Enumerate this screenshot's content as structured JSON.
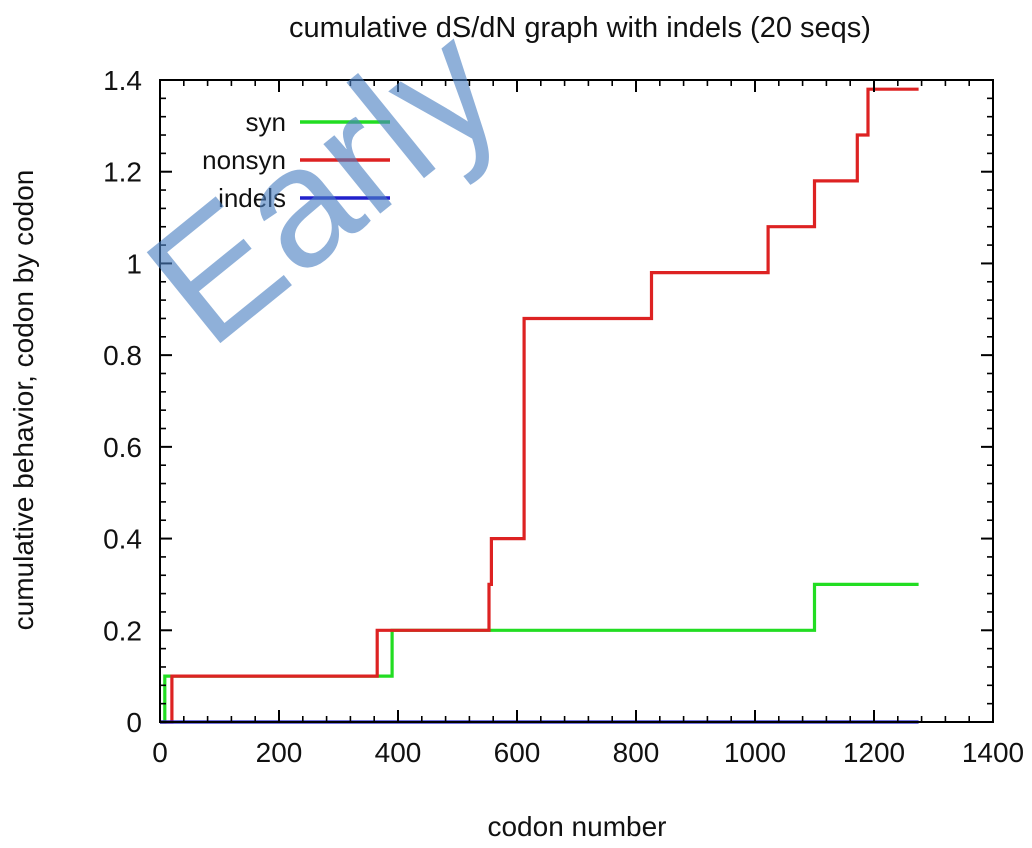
{
  "watermark": "Early",
  "chart_data": {
    "type": "line",
    "step": true,
    "title": "cumulative dS/dN graph with indels (20 seqs)",
    "xlabel": "codon number",
    "ylabel": "cumulative behavior, codon by codon",
    "xlim": [
      0,
      1400
    ],
    "ylim": [
      0,
      1.4
    ],
    "xticks": [
      "0",
      "200",
      "400",
      "600",
      "800",
      "1000",
      "1200",
      "1400"
    ],
    "yticks": [
      "0",
      "0.2",
      "0.4",
      "0.6",
      "0.8",
      "1",
      "1.2",
      "1.4"
    ],
    "xtick_values": [
      0,
      200,
      400,
      600,
      800,
      1000,
      1200,
      1400
    ],
    "ytick_values": [
      0,
      0.2,
      0.4,
      0.6,
      0.8,
      1,
      1.2,
      1.4
    ],
    "legend_position": "top-left",
    "grid": false,
    "series": [
      {
        "name": "syn",
        "color": "#22dd22",
        "points": [
          [
            0,
            0
          ],
          [
            8,
            0
          ],
          [
            8,
            0.1
          ],
          [
            373,
            0.1
          ],
          [
            373,
            0.1
          ],
          [
            390,
            0.1
          ],
          [
            390,
            0.2
          ],
          [
            1100,
            0.2
          ],
          [
            1100,
            0.3
          ],
          [
            1275,
            0.3
          ]
        ]
      },
      {
        "name": "nonsyn",
        "color": "#dd2222",
        "points": [
          [
            0,
            0
          ],
          [
            20,
            0
          ],
          [
            20,
            0.1
          ],
          [
            365,
            0.1
          ],
          [
            365,
            0.2
          ],
          [
            553,
            0.2
          ],
          [
            553,
            0.3
          ],
          [
            557,
            0.3
          ],
          [
            557,
            0.4
          ],
          [
            612,
            0.4
          ],
          [
            612,
            0.88
          ],
          [
            826,
            0.88
          ],
          [
            826,
            0.98
          ],
          [
            1022,
            0.98
          ],
          [
            1022,
            1.08
          ],
          [
            1100,
            1.08
          ],
          [
            1100,
            1.18
          ],
          [
            1172,
            1.18
          ],
          [
            1172,
            1.28
          ],
          [
            1190,
            1.28
          ],
          [
            1190,
            1.38
          ],
          [
            1275,
            1.38
          ]
        ]
      },
      {
        "name": "indels",
        "color": "#2222cc",
        "points": [
          [
            0,
            0
          ],
          [
            1275,
            0
          ]
        ]
      }
    ]
  }
}
